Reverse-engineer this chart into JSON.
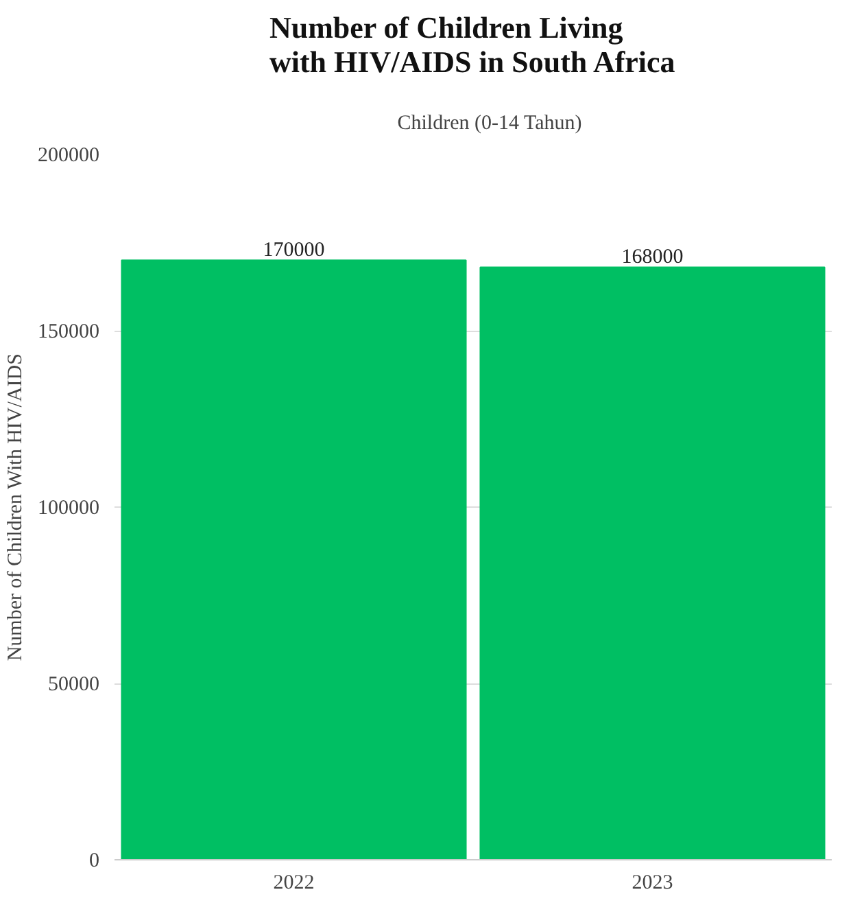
{
  "chart_data": {
    "type": "bar",
    "title": "Number of Children Living with HIV/AIDS in South Africa",
    "ylabel": "Number of Children With HIV/AIDS",
    "categories": [
      "2022",
      "2023"
    ],
    "series": [
      {
        "name": "Children (0-14 Tahun)",
        "color": "#00bf63",
        "values": [
          170000,
          168000
        ]
      }
    ],
    "ylim": [
      0,
      200000
    ],
    "yticks": [
      0,
      50000,
      100000,
      150000,
      200000
    ],
    "grid": "y",
    "legend": "top",
    "data_labels": true
  }
}
